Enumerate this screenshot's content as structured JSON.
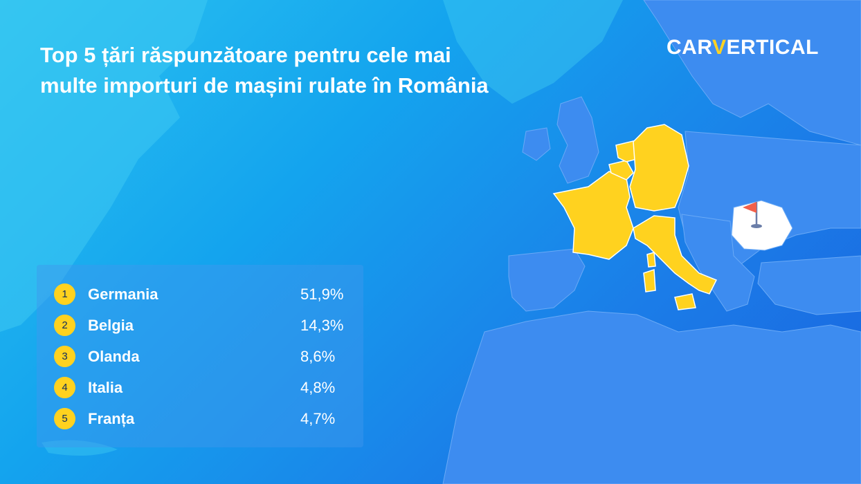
{
  "title": {
    "line1": "Top 5 țări răspunzătoare pentru cele mai",
    "line2": "multe importuri de mașini rulate în România"
  },
  "logo": {
    "part1": "CAR",
    "part2": "V",
    "part3": "ERTICAL",
    "accent_color": "#ffd21f"
  },
  "ranking": [
    {
      "rank": "1",
      "country": "Germania",
      "share": "51,9%"
    },
    {
      "rank": "2",
      "country": "Belgia",
      "share": "14,3%"
    },
    {
      "rank": "3",
      "country": "Olanda",
      "share": "8,6%"
    },
    {
      "rank": "4",
      "country": "Italia",
      "share": "4,8%"
    },
    {
      "rank": "5",
      "country": "Franța",
      "share": "4,7%"
    }
  ],
  "map": {
    "highlight_color": "#ffd21f",
    "land_color": "#3d8cf0",
    "destination_color": "#ffffff",
    "marker": "flag-icon",
    "marker_color": "#f2604a"
  }
}
